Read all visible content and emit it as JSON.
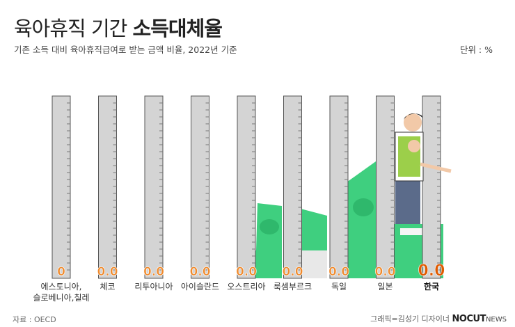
{
  "title": {
    "regular": "육아휴직 기간",
    "bold": "소득대체율"
  },
  "subtitle": "기존 소득 대비 육아휴직급여로 받는 금액 비율, 2022년 기준",
  "unit": "단위 : %",
  "source": "자료 : OECD",
  "credit": {
    "prefix": "그래픽=김성기 디자이너",
    "logo": "NOCUT",
    "logo_suffix": "NEWS"
  },
  "chart_data": {
    "type": "bar",
    "categories": [
      "에스토니아,\n슬로베니아,칠레",
      "체코",
      "리투아니아",
      "아이슬란드",
      "오스트리아",
      "룩셈부르크",
      "독일",
      "일본",
      "한국"
    ],
    "values": [
      0,
      0,
      0,
      0,
      0,
      0,
      0,
      0,
      0
    ],
    "value_labels": [
      "0",
      "0.0",
      "0.0",
      "0.0",
      "0.0",
      "0.0",
      "0.0",
      "0.0",
      "0.0"
    ],
    "highlight": "한국",
    "colors": {
      "bar": "#d4d4d4",
      "value": "#f08a2c",
      "highlight_value": "#e05a00",
      "money": "#3fcf7f"
    }
  }
}
